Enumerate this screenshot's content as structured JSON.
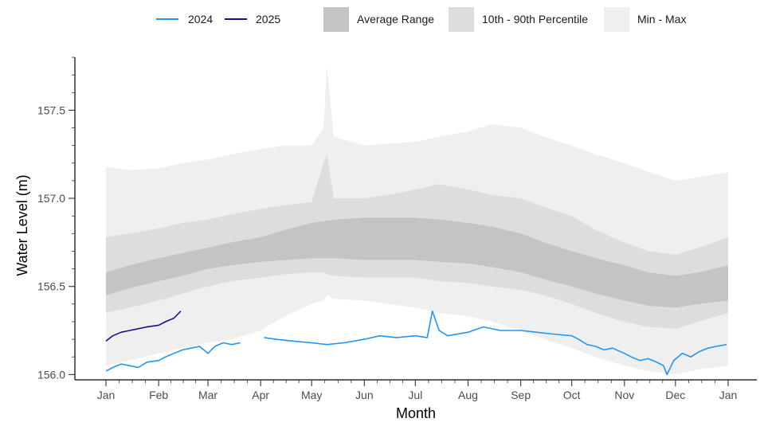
{
  "chart_data": {
    "type": "area",
    "xlabel": "Month",
    "ylabel": "Water Level (m)",
    "ylim": [
      155.97,
      157.8
    ],
    "yticks": [
      156.0,
      156.5,
      157.0,
      157.5
    ],
    "ytick_labels": [
      "156.0",
      "156.5",
      "157.0",
      "157.5"
    ],
    "xticks": [
      "2000-01-01",
      "2000-02-01",
      "2000-03-01",
      "2000-04-01",
      "2000-05-01",
      "2000-06-01",
      "2000-07-01",
      "2000-08-01",
      "2000-09-01",
      "2000-10-01",
      "2000-11-01",
      "2000-12-01",
      "2001-01-01"
    ],
    "xtick_labels": [
      "Jan",
      "Feb",
      "Mar",
      "Apr",
      "May",
      "Jun",
      "Jul",
      "Aug",
      "Sep",
      "Oct",
      "Nov",
      "Dec",
      "Jan"
    ],
    "legend_position": "top",
    "legend": [
      {
        "label": "2024",
        "kind": "line",
        "color": "#2196f3"
      },
      {
        "label": "2025",
        "kind": "line",
        "color": "#13128a"
      },
      {
        "label": "Average Range",
        "kind": "fill",
        "color": "#c4c4c4"
      },
      {
        "label": "10th - 90th Percentile",
        "kind": "fill",
        "color": "#dddddd"
      },
      {
        "label": "Min - Max",
        "kind": "fill",
        "color": "#efefef"
      }
    ],
    "bands": [
      {
        "name": "Min - Max",
        "color": "#efefef",
        "x": [
          "2000-01-01",
          "2000-01-15",
          "2000-02-01",
          "2000-02-15",
          "2000-03-01",
          "2000-03-15",
          "2000-04-01",
          "2000-04-15",
          "2000-05-01",
          "2000-05-08",
          "2000-05-10",
          "2000-05-14",
          "2000-06-01",
          "2000-06-15",
          "2000-07-01",
          "2000-07-15",
          "2000-08-01",
          "2000-08-15",
          "2000-09-01",
          "2000-09-15",
          "2000-10-01",
          "2000-10-15",
          "2000-11-01",
          "2000-11-15",
          "2000-12-01",
          "2000-12-15",
          "2001-01-01"
        ],
        "low": [
          156.05,
          156.08,
          156.12,
          156.15,
          156.18,
          156.2,
          156.25,
          156.33,
          156.4,
          156.42,
          156.45,
          156.43,
          156.42,
          156.4,
          156.38,
          156.35,
          156.33,
          156.3,
          156.25,
          156.2,
          156.15,
          156.1,
          156.05,
          156.02,
          156.0,
          156.03,
          156.05
        ],
        "high": [
          157.18,
          157.16,
          157.17,
          157.2,
          157.22,
          157.25,
          157.28,
          157.3,
          157.3,
          157.4,
          157.75,
          157.35,
          157.3,
          157.31,
          157.32,
          157.35,
          157.38,
          157.42,
          157.4,
          157.35,
          157.3,
          157.25,
          157.2,
          157.15,
          157.1,
          157.12,
          157.15
        ]
      },
      {
        "name": "10th - 90th Percentile",
        "color": "#dddddd",
        "x": [
          "2000-01-01",
          "2000-01-15",
          "2000-02-01",
          "2000-02-15",
          "2000-03-01",
          "2000-03-15",
          "2000-04-01",
          "2000-04-15",
          "2000-05-01",
          "2000-05-08",
          "2000-05-10",
          "2000-05-14",
          "2000-06-01",
          "2000-06-15",
          "2000-07-01",
          "2000-07-15",
          "2000-08-01",
          "2000-08-15",
          "2000-09-01",
          "2000-09-15",
          "2000-10-01",
          "2000-10-15",
          "2000-11-01",
          "2000-11-15",
          "2000-12-01",
          "2000-12-15",
          "2001-01-01"
        ],
        "low": [
          156.35,
          156.38,
          156.42,
          156.46,
          156.5,
          156.53,
          156.55,
          156.57,
          156.58,
          156.58,
          156.57,
          156.56,
          156.55,
          156.55,
          156.55,
          156.53,
          156.52,
          156.5,
          156.48,
          156.45,
          156.4,
          156.35,
          156.3,
          156.27,
          156.26,
          156.3,
          156.35
        ],
        "high": [
          156.78,
          156.8,
          156.83,
          156.86,
          156.88,
          156.91,
          156.94,
          156.96,
          156.98,
          157.2,
          157.25,
          157.0,
          157.0,
          157.02,
          157.05,
          157.08,
          157.05,
          157.02,
          157.0,
          156.95,
          156.9,
          156.82,
          156.75,
          156.7,
          156.68,
          156.72,
          156.78
        ]
      },
      {
        "name": "Average Range",
        "color": "#c4c4c4",
        "x": [
          "2000-01-01",
          "2000-01-15",
          "2000-02-01",
          "2000-02-15",
          "2000-03-01",
          "2000-03-15",
          "2000-04-01",
          "2000-04-15",
          "2000-05-01",
          "2000-05-15",
          "2000-06-01",
          "2000-06-15",
          "2000-07-01",
          "2000-07-15",
          "2000-08-01",
          "2000-08-15",
          "2000-09-01",
          "2000-09-15",
          "2000-10-01",
          "2000-10-15",
          "2000-11-01",
          "2000-11-15",
          "2000-12-01",
          "2000-12-15",
          "2001-01-01"
        ],
        "low": [
          156.45,
          156.49,
          156.53,
          156.56,
          156.6,
          156.62,
          156.64,
          156.65,
          156.66,
          156.66,
          156.65,
          156.65,
          156.65,
          156.64,
          156.63,
          156.61,
          156.58,
          156.54,
          156.5,
          156.46,
          156.42,
          156.39,
          156.38,
          156.4,
          156.42
        ],
        "high": [
          156.58,
          156.62,
          156.66,
          156.69,
          156.72,
          156.75,
          156.78,
          156.82,
          156.86,
          156.88,
          156.89,
          156.89,
          156.89,
          156.88,
          156.86,
          156.84,
          156.8,
          156.75,
          156.7,
          156.66,
          156.62,
          156.58,
          156.56,
          156.58,
          156.62
        ]
      }
    ],
    "series": [
      {
        "name": "2024",
        "color": "#2196f3",
        "x": [
          "2000-01-01",
          "2000-01-05",
          "2000-01-10",
          "2000-01-15",
          "2000-01-20",
          "2000-01-25",
          "2000-02-01",
          "2000-02-05",
          "2000-02-10",
          "2000-02-15",
          "2000-02-20",
          "2000-02-25",
          "2000-03-01",
          "2000-03-05",
          "2000-03-10",
          "2000-03-15",
          "2000-03-20",
          null,
          "2000-04-03",
          "2000-04-10",
          "2000-04-20",
          "2000-05-01",
          "2000-05-10",
          "2000-05-20",
          "2000-06-01",
          "2000-06-10",
          "2000-06-20",
          "2000-07-01",
          "2000-07-08",
          "2000-07-11",
          "2000-07-15",
          "2000-07-20",
          "2000-08-01",
          "2000-08-10",
          "2000-08-20",
          "2000-09-01",
          "2000-09-10",
          "2000-09-20",
          "2000-10-01",
          "2000-10-05",
          "2000-10-10",
          "2000-10-15",
          "2000-10-20",
          "2000-10-25",
          "2000-11-01",
          "2000-11-05",
          "2000-11-10",
          "2000-11-15",
          "2000-11-20",
          "2000-11-24",
          "2000-11-26",
          "2000-11-30",
          "2000-12-05",
          "2000-12-10",
          "2000-12-15",
          "2000-12-20",
          "2000-12-25",
          "2000-12-31"
        ],
        "y": [
          156.02,
          156.04,
          156.06,
          156.05,
          156.04,
          156.07,
          156.08,
          156.1,
          156.12,
          156.14,
          156.15,
          156.16,
          156.12,
          156.16,
          156.18,
          156.17,
          156.18,
          null,
          156.21,
          156.2,
          156.19,
          156.18,
          156.17,
          156.18,
          156.2,
          156.22,
          156.21,
          156.22,
          156.21,
          156.36,
          156.25,
          156.22,
          156.24,
          156.27,
          156.25,
          156.25,
          156.24,
          156.23,
          156.22,
          156.2,
          156.17,
          156.16,
          156.14,
          156.15,
          156.12,
          156.1,
          156.08,
          156.09,
          156.07,
          156.05,
          156.0,
          156.08,
          156.12,
          156.1,
          156.13,
          156.15,
          156.16,
          156.17
        ]
      },
      {
        "name": "2025",
        "color": "#13128a",
        "x": [
          "2000-01-01",
          "2000-01-05",
          "2000-01-10",
          "2000-01-15",
          "2000-01-20",
          "2000-01-25",
          "2000-02-01",
          "2000-02-05",
          "2000-02-10",
          "2000-02-14"
        ],
        "y": [
          156.19,
          156.22,
          156.24,
          156.25,
          156.26,
          156.27,
          156.28,
          156.3,
          156.32,
          156.36
        ]
      }
    ]
  }
}
